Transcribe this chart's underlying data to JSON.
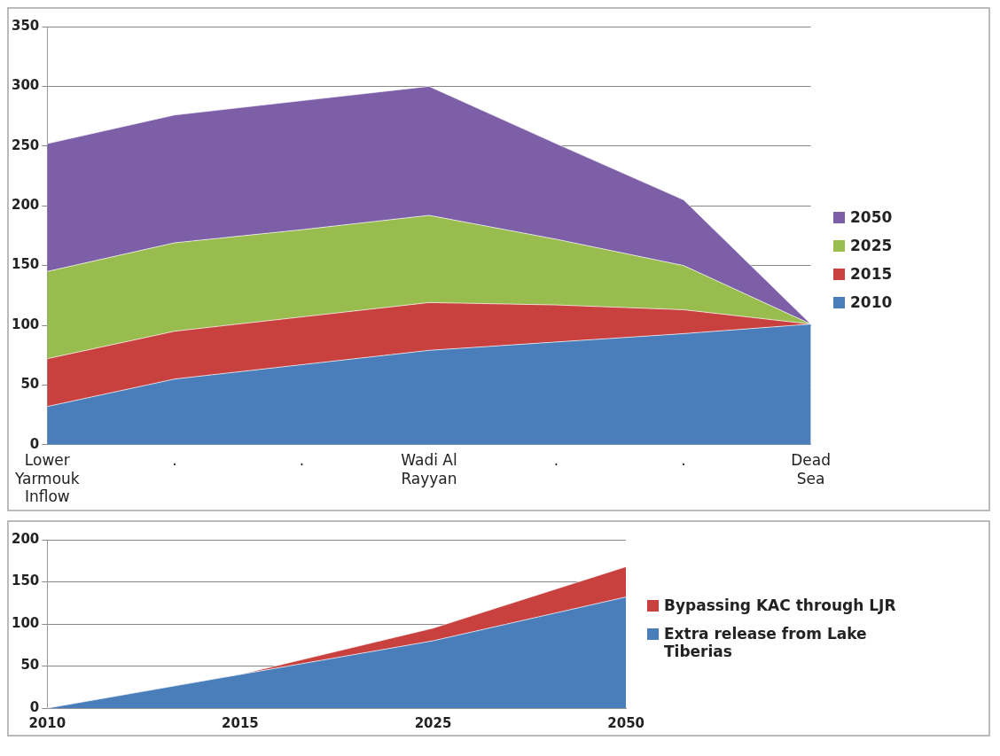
{
  "chart_data": [
    {
      "type": "area",
      "stacked": true,
      "categories": [
        "Lower Yarmouk Inflow",
        ".",
        ".",
        "Wadi Al Rayyan",
        ".",
        ".",
        "Dead Sea"
      ],
      "series": [
        {
          "name": "2010",
          "color": "#4a7ebb",
          "values": [
            32,
            55,
            67,
            79,
            86,
            93,
            101
          ]
        },
        {
          "name": "2015",
          "color": "#c9413e",
          "values": [
            40,
            40,
            40,
            40,
            31,
            20,
            0
          ]
        },
        {
          "name": "2025",
          "color": "#98bd4e",
          "values": [
            73,
            74,
            73,
            73,
            55,
            37,
            0
          ]
        },
        {
          "name": "2050",
          "color": "#7d5fa8",
          "values": [
            107,
            107,
            108,
            108,
            80,
            55,
            0
          ]
        }
      ],
      "ylim": [
        0,
        350
      ],
      "yticks": [
        0,
        50,
        100,
        150,
        200,
        250,
        300,
        350
      ],
      "grid": "y",
      "legend": "right"
    },
    {
      "type": "area",
      "stacked": true,
      "categories": [
        "2010",
        "2015",
        "2025",
        "2050"
      ],
      "series": [
        {
          "name": "Extra release from Lake Tiberias",
          "color": "#4a7ebb",
          "values": [
            0,
            40,
            80,
            132
          ]
        },
        {
          "name": "Bypassing KAC through LJR",
          "color": "#c9413e",
          "values": [
            0,
            0,
            15,
            36
          ]
        }
      ],
      "ylim": [
        0,
        200
      ],
      "yticks": [
        0,
        50,
        100,
        150,
        200
      ],
      "grid": "y",
      "legend": "right"
    }
  ]
}
